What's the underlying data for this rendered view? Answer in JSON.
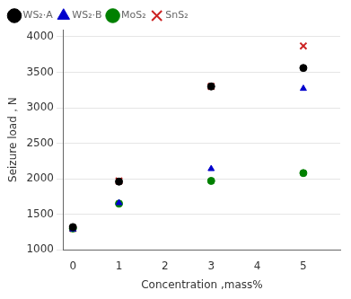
{
  "chart_data": {
    "type": "scatter",
    "xlabel": "Concentration ,mass%",
    "ylabel": "Seizure load，N",
    "x": [
      0,
      1,
      3,
      5
    ],
    "series": [
      {
        "name": "WS₂·A",
        "color": "#000000",
        "marker": "circle",
        "values": [
          1320,
          1960,
          3300,
          3560
        ]
      },
      {
        "name": "WS₂·B",
        "color": "#0000cc",
        "marker": "triangle",
        "values": [
          1290,
          1660,
          2140,
          3270
        ]
      },
      {
        "name": "MoS₂",
        "color": "#008000",
        "marker": "circle",
        "values": [
          1300,
          1650,
          1970,
          2080
        ]
      },
      {
        "name": "SnS₂",
        "color": "#cc2222",
        "marker": "x",
        "values": [
          1300,
          1970,
          3300,
          3870
        ]
      }
    ],
    "xlim": [
      -0.2,
      5.8
    ],
    "xticks": [
      0,
      1,
      2,
      3,
      4,
      5
    ],
    "ylim": [
      1000,
      4100
    ],
    "yticks": [
      1000,
      1500,
      2000,
      2500,
      3000,
      3500,
      4000
    ],
    "grid": "y",
    "legend": "upper left"
  }
}
